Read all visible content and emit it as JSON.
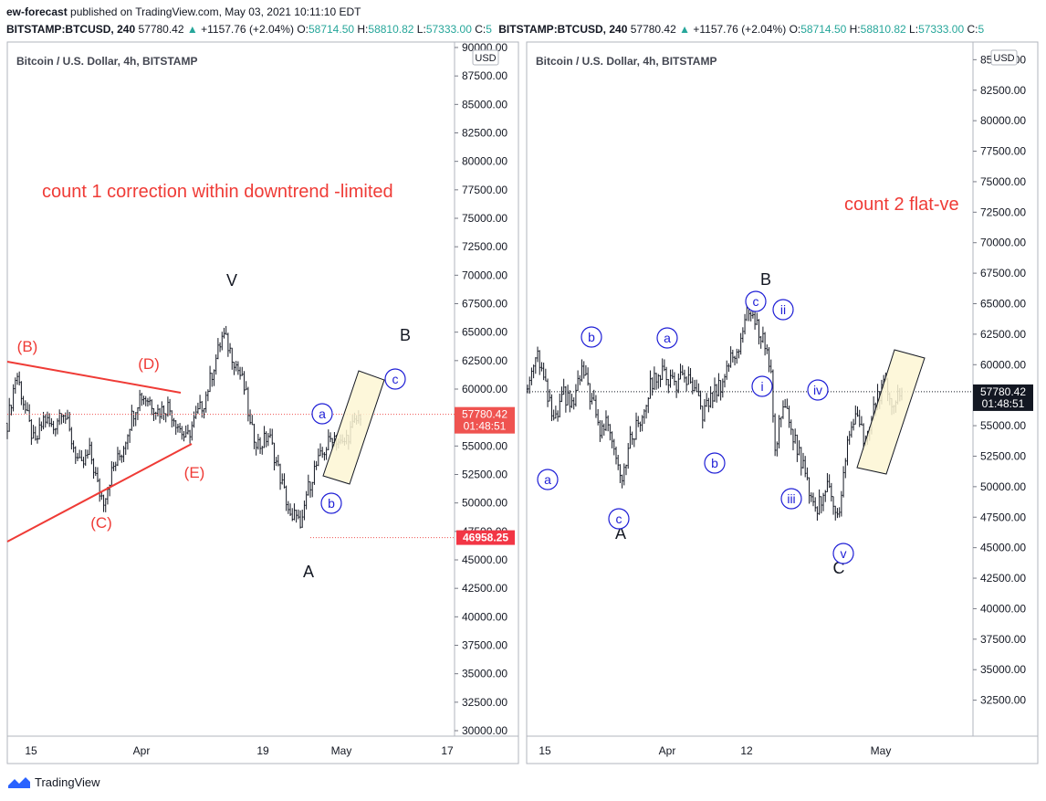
{
  "header": {
    "author": "ew-forecast",
    "published_text": " published on TradingView.com, May 03, 2021 10:11:10 EDT",
    "quote_line": {
      "symbol": "BITSTAMP:BTCUSD, 240",
      "last": "57780.42",
      "change": "+1157.76 (+2.04%)",
      "open_label": "O:",
      "open": "58714.50",
      "high_label": "H:",
      "high": "58810.82",
      "low_label": "L:",
      "low": "57333.00",
      "close_label": "C:",
      "close_partial": "5"
    }
  },
  "footer": {
    "brand": "TradingView"
  },
  "chart_data": [
    {
      "type": "candlestick",
      "title": "Bitcoin / U.S. Dollar, 4h, BITSTAMP",
      "currency": "USD",
      "ylim": [
        30000,
        90000
      ],
      "yticks": [
        "90000.00",
        "87500.00",
        "85000.00",
        "82500.00",
        "80000.00",
        "77500.00",
        "75000.00",
        "72500.00",
        "70000.00",
        "67500.00",
        "65000.00",
        "62500.00",
        "60000.00",
        "57500.00",
        "55000.00",
        "52500.00",
        "50000.00",
        "47500.00",
        "45000.00",
        "42500.00",
        "40000.00",
        "37500.00",
        "35000.00",
        "32500.00",
        "30000.00"
      ],
      "xticks": [
        "15",
        "Apr",
        "19",
        "May",
        "17"
      ],
      "last_price_label": "57780.42",
      "countdown_label": "01:48:51",
      "low_marker_label": "46958.25",
      "annotation_title": "count 1 correction within downtrend -limited",
      "wave_labels_black": [
        "V",
        "B",
        "A"
      ],
      "wave_labels_red": [
        "(B)",
        "(D)",
        "(C)",
        "(E)"
      ],
      "wave_labels_circled": [
        "a",
        "b",
        "c"
      ],
      "colors": {
        "red": "#ef3b36",
        "blue": "#1f1fd6",
        "price": "#ef5350"
      },
      "series": [
        {
          "t": 0,
          "v": 57000
        },
        {
          "t": 2,
          "v": 61500
        },
        {
          "t": 4,
          "v": 58000
        },
        {
          "t": 6,
          "v": 55000
        },
        {
          "t": 8,
          "v": 57500
        },
        {
          "t": 10,
          "v": 56500
        },
        {
          "t": 12,
          "v": 58500
        },
        {
          "t": 14,
          "v": 55500
        },
        {
          "t": 16,
          "v": 53000
        },
        {
          "t": 18,
          "v": 54500
        },
        {
          "t": 20,
          "v": 51000
        },
        {
          "t": 21,
          "v": 50300
        },
        {
          "t": 23,
          "v": 53000
        },
        {
          "t": 25,
          "v": 54500
        },
        {
          "t": 27,
          "v": 57500
        },
        {
          "t": 29,
          "v": 59500
        },
        {
          "t": 31,
          "v": 59000
        },
        {
          "t": 33,
          "v": 58000
        },
        {
          "t": 35,
          "v": 58500
        },
        {
          "t": 37,
          "v": 57000
        },
        {
          "t": 39,
          "v": 55500
        },
        {
          "t": 41,
          "v": 57500
        },
        {
          "t": 43,
          "v": 59000
        },
        {
          "t": 45,
          "v": 62000
        },
        {
          "t": 47,
          "v": 64800
        },
        {
          "t": 49,
          "v": 63000
        },
        {
          "t": 51,
          "v": 61000
        },
        {
          "t": 52,
          "v": 59500
        },
        {
          "t": 53,
          "v": 56500
        },
        {
          "t": 55,
          "v": 55000
        },
        {
          "t": 57,
          "v": 56000
        },
        {
          "t": 59,
          "v": 53000
        },
        {
          "t": 61,
          "v": 50000
        },
        {
          "t": 62,
          "v": 48000
        },
        {
          "t": 63,
          "v": 49500
        },
        {
          "t": 64,
          "v": 47100
        },
        {
          "t": 65,
          "v": 50500
        },
        {
          "t": 67,
          "v": 53000
        },
        {
          "t": 69,
          "v": 54500
        },
        {
          "t": 71,
          "v": 56000
        },
        {
          "t": 73,
          "v": 55000
        },
        {
          "t": 75,
          "v": 56500
        },
        {
          "t": 77,
          "v": 57800
        }
      ]
    },
    {
      "type": "candlestick",
      "title": "Bitcoin / U.S. Dollar, 4h, BITSTAMP",
      "currency": "USD",
      "ylim": [
        30000,
        86000
      ],
      "yticks": [
        "85000.00",
        "82500.00",
        "80000.00",
        "77500.00",
        "75000.00",
        "72500.00",
        "70000.00",
        "67500.00",
        "65000.00",
        "62500.00",
        "60000.00",
        "57500.00",
        "55000.00",
        "52500.00",
        "50000.00",
        "47500.00",
        "45000.00",
        "42500.00",
        "40000.00",
        "37500.00",
        "35000.00",
        "32500.00"
      ],
      "xticks": [
        "15",
        "Apr",
        "12",
        "May"
      ],
      "last_price_label": "57780.42",
      "countdown_label": "01:48:51",
      "annotation_title": "count 2 flat-ve",
      "wave_labels_black": [
        "B",
        "A",
        "C"
      ],
      "wave_labels_circled": [
        "a",
        "b",
        "c",
        "a",
        "b",
        "c",
        "ii",
        "i",
        "iv",
        "iii",
        "v"
      ],
      "colors": {
        "red": "#ef3b36",
        "blue": "#1f1fd6"
      },
      "series": [
        {
          "t": 0,
          "v": 58000
        },
        {
          "t": 2,
          "v": 61500
        },
        {
          "t": 4,
          "v": 58000
        },
        {
          "t": 6,
          "v": 55000
        },
        {
          "t": 8,
          "v": 57500
        },
        {
          "t": 10,
          "v": 56500
        },
        {
          "t": 12,
          "v": 59500
        },
        {
          "t": 14,
          "v": 57500
        },
        {
          "t": 16,
          "v": 54500
        },
        {
          "t": 18,
          "v": 55500
        },
        {
          "t": 20,
          "v": 52000
        },
        {
          "t": 21,
          "v": 51000
        },
        {
          "t": 23,
          "v": 54000
        },
        {
          "t": 25,
          "v": 55500
        },
        {
          "t": 27,
          "v": 58000
        },
        {
          "t": 29,
          "v": 59500
        },
        {
          "t": 31,
          "v": 59000
        },
        {
          "t": 33,
          "v": 58500
        },
        {
          "t": 35,
          "v": 59000
        },
        {
          "t": 37,
          "v": 57500
        },
        {
          "t": 39,
          "v": 56000
        },
        {
          "t": 41,
          "v": 57500
        },
        {
          "t": 43,
          "v": 58500
        },
        {
          "t": 45,
          "v": 60500
        },
        {
          "t": 47,
          "v": 61500
        },
        {
          "t": 49,
          "v": 64800
        },
        {
          "t": 51,
          "v": 63000
        },
        {
          "t": 53,
          "v": 61500
        },
        {
          "t": 54,
          "v": 59000
        },
        {
          "t": 55,
          "v": 52500
        },
        {
          "t": 56,
          "v": 56500
        },
        {
          "t": 58,
          "v": 55500
        },
        {
          "t": 60,
          "v": 53000
        },
        {
          "t": 62,
          "v": 50500
        },
        {
          "t": 64,
          "v": 48000
        },
        {
          "t": 66,
          "v": 50000
        },
        {
          "t": 68,
          "v": 49000
        },
        {
          "t": 69,
          "v": 47200
        },
        {
          "t": 71,
          "v": 54000
        },
        {
          "t": 73,
          "v": 55500
        },
        {
          "t": 75,
          "v": 53500
        },
        {
          "t": 77,
          "v": 56500
        },
        {
          "t": 79,
          "v": 58800
        },
        {
          "t": 81,
          "v": 57000
        },
        {
          "t": 83,
          "v": 57800
        }
      ]
    }
  ]
}
